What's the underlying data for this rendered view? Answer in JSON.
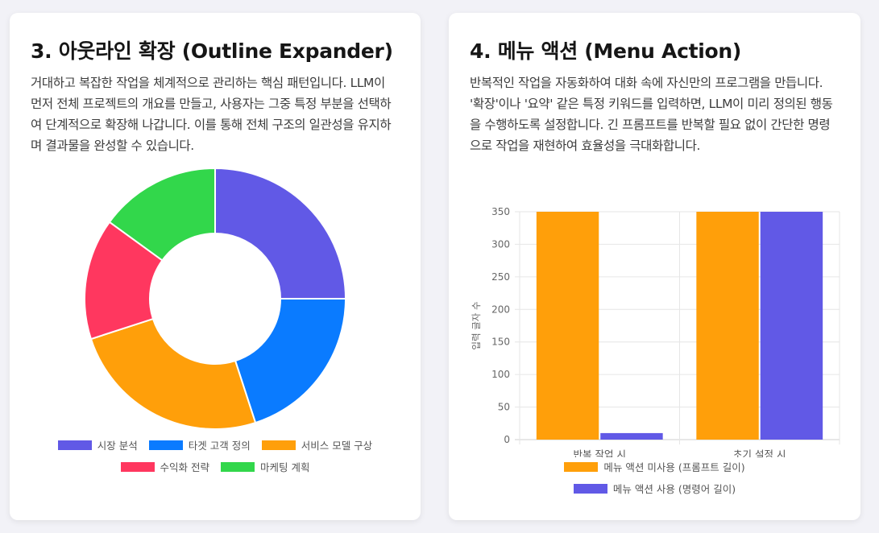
{
  "left_card": {
    "title": "3. 아웃라인 확장 (Outline Expander)",
    "description": "거대하고 복잡한 작업을 체계적으로 관리하는 핵심 패턴입니다. LLM이 먼저 전체 프로젝트의 개요를 만들고, 사용자는 그중 특정 부분을 선택하여 단계적으로 확장해 나갑니다. 이를 통해 전체 구조의 일관성을 유지하며 결과물을 완성할 수 있습니다."
  },
  "right_card": {
    "title": "4. 메뉴 액션 (Menu Action)",
    "description": "반복적인 작업을 자동화하여 대화 속에 자신만의 프로그램을 만듭니다. '확장'이나 '요약' 같은 특정 키워드를 입력하면, LLM이 미리 정의된 행동을 수행하도록 설정합니다. 긴 프롬프트를 반복할 필요 없이 간단한 명령으로 작업을 재현하여 효율성을 극대화합니다."
  },
  "chart_data": [
    {
      "type": "pie",
      "donut": true,
      "labels": [
        "시장 분석",
        "타겟 고객 정의",
        "서비스 모델 구상",
        "수익화 전략",
        "마케팅 계획"
      ],
      "values": [
        25,
        20,
        25,
        15,
        15
      ],
      "colors": [
        "#6159e6",
        "#0a7bff",
        "#ff9f0a",
        "#ff375f",
        "#32d74b"
      ],
      "legend": "bottom"
    },
    {
      "type": "bar",
      "categories": [
        "반복 작업 시",
        "초기 설정 시"
      ],
      "series": [
        {
          "name": "메뉴 액션 미사용 (프롬프트 길이)",
          "values": [
            350,
            350
          ],
          "color": "#ff9f0a"
        },
        {
          "name": "메뉴 액션 사용 (명령어 길이)",
          "values": [
            10,
            350
          ],
          "color": "#6159e6"
        }
      ],
      "ylabel": "입력 글자 수",
      "ylim": [
        0,
        350
      ],
      "yticks": [
        0,
        50,
        100,
        150,
        200,
        250,
        300,
        350
      ],
      "grid": true,
      "legend": "bottom"
    }
  ]
}
